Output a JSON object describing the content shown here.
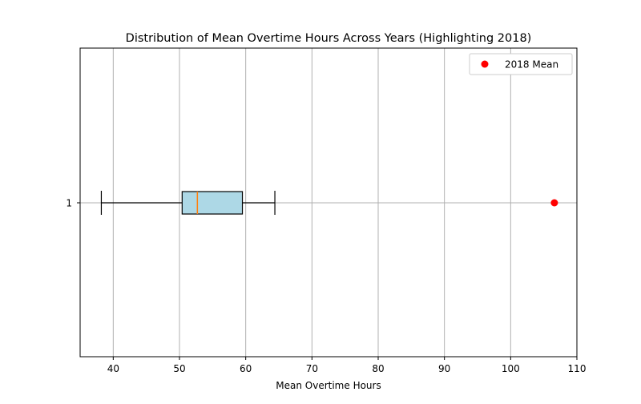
{
  "chart_data": {
    "type": "box",
    "title": "Distribution of Mean Overtime Hours Across Years (Highlighting 2018)",
    "xlabel": "Mean Overtime Hours",
    "ylabel": "",
    "xlim": [
      35,
      110
    ],
    "x_ticks": [
      40,
      50,
      60,
      70,
      80,
      90,
      100,
      110
    ],
    "y_ticks": [
      "1"
    ],
    "grid": true,
    "orientation": "horizontal",
    "box": {
      "category": "1",
      "whisker_low": 38.2,
      "q1": 50.4,
      "median": 52.7,
      "q3": 59.5,
      "whisker_high": 64.4,
      "fill_color": "#add8e6",
      "median_color": "#ff7f0e"
    },
    "highlight": {
      "name": "2018 Mean",
      "x": 106.6,
      "y": "1",
      "color": "#ff0000"
    },
    "legend": {
      "position": "top-right",
      "entries": [
        "2018 Mean"
      ]
    }
  }
}
